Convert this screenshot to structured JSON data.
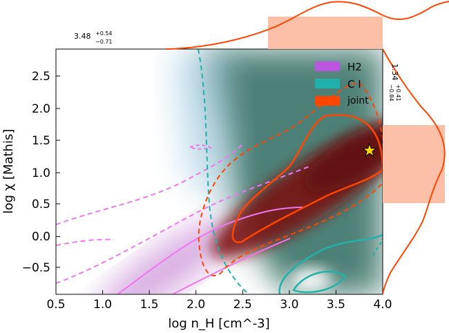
{
  "chart_data": {
    "type": "heatmap",
    "title": "",
    "xlabel": "log n_H [cm^-3]",
    "ylabel": "log χ [Mathis]",
    "xlim": [
      0.5,
      4.0
    ],
    "ylim": [
      -0.9,
      2.9
    ],
    "xticks": [
      "0.5",
      "1.0",
      "1.5",
      "2.0",
      "2.5",
      "3.0",
      "3.5",
      "4.0"
    ],
    "yticks": [
      "−0.5",
      "0.0",
      "0.5",
      "1.0",
      "1.5",
      "2.0",
      "2.5"
    ],
    "legend": {
      "position": "top-right",
      "entries": [
        {
          "label": "H2",
          "color": "#bb55dd"
        },
        {
          "label": "C I",
          "color": "#20b2aa"
        },
        {
          "label": "joint",
          "color": "#ff4500"
        }
      ]
    },
    "best_fit": {
      "x": 3.86,
      "y": 1.34,
      "marker": "star",
      "color": "#ffd700"
    },
    "marginal_x": {
      "estimate": "3.48",
      "err_plus": "+0.54",
      "err_minus": "−0.71",
      "interval": [
        2.77,
        4.0
      ]
    },
    "marginal_y": {
      "estimate": "1.34",
      "err_plus": "+0.41",
      "err_minus": "−0.84",
      "interval": [
        0.5,
        1.75
      ]
    },
    "series": [
      {
        "name": "H2",
        "component": "density",
        "peak": [
          2.1,
          -0.6
        ]
      },
      {
        "name": "C I",
        "component": "density",
        "peak": [
          3.6,
          1.6
        ]
      },
      {
        "name": "joint",
        "component": "density",
        "peak": [
          3.86,
          1.34
        ]
      }
    ],
    "colors": {
      "h2": "#cc66dd",
      "ci": "#1fae9f",
      "joint": "#ff4500",
      "joint_fill": "#8b1a1a",
      "ci_fill": "#2f6b5e",
      "marginal_fill": "#fcc0a8"
    }
  }
}
